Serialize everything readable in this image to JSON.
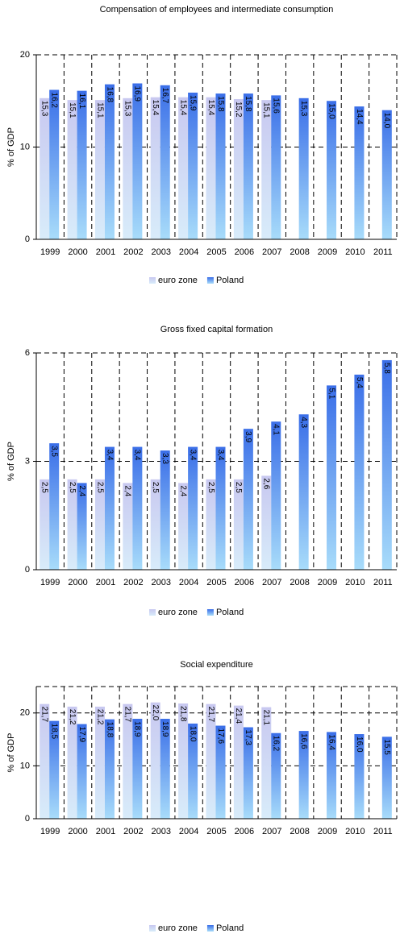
{
  "chart_data": [
    {
      "type": "bar",
      "title": "Compensation of employees and intermediate consumption",
      "y_label": "% of GDP",
      "categories": [
        "1999",
        "2000",
        "2001",
        "2002",
        "2003",
        "2004",
        "2005",
        "2006",
        "2007",
        "2008",
        "2009",
        "2010",
        "2011"
      ],
      "ylim": [
        0,
        20
      ],
      "yticks": [
        0,
        10,
        20
      ],
      "grid": true,
      "series": [
        {
          "name": "euro zone",
          "color": "#c8c8f0",
          "values": [
            15.3,
            15.1,
            15.1,
            15.3,
            15.4,
            15.4,
            15.4,
            15.2,
            15.1,
            null,
            null,
            null,
            null
          ],
          "value_labels": [
            "15,3",
            "15,1",
            "15,1",
            "15,3",
            "15,4",
            "15,4",
            "15,4",
            "15,2",
            "15,1",
            null,
            null,
            null,
            null
          ]
        },
        {
          "name": "Poland",
          "color": "#3a6ee8",
          "values": [
            16.2,
            16.1,
            16.8,
            16.9,
            16.7,
            15.9,
            15.8,
            15.8,
            15.6,
            15.3,
            15.0,
            14.4,
            14.0
          ],
          "value_labels": [
            "16,2",
            "16,1",
            "16,8",
            "16,9",
            "16,7",
            "15,9",
            "15,8",
            "15,8",
            "15,6",
            "15,3",
            "15,0",
            "14,4",
            "14,0"
          ]
        }
      ]
    },
    {
      "type": "bar",
      "title": "Gross fixed capital formation",
      "y_label": "% of GDP",
      "categories": [
        "1999",
        "2000",
        "2001",
        "2002",
        "2003",
        "2004",
        "2005",
        "2006",
        "2007",
        "2008",
        "2009",
        "2010",
        "2011"
      ],
      "ylim": [
        0,
        6
      ],
      "yticks": [
        0,
        3,
        6
      ],
      "grid": true,
      "series": [
        {
          "name": "euro zone",
          "color": "#c8c8f0",
          "values": [
            2.5,
            2.5,
            2.5,
            2.4,
            2.5,
            2.4,
            2.5,
            2.5,
            2.6,
            null,
            null,
            null,
            null
          ],
          "value_labels": [
            "2,5",
            "2,5",
            "2,5",
            "2,4",
            "2,5",
            "2,4",
            "2,5",
            "2,5",
            "2,6",
            null,
            null,
            null,
            null
          ]
        },
        {
          "name": "Poland",
          "color": "#3a6ee8",
          "values": [
            3.5,
            2.4,
            3.4,
            3.4,
            3.3,
            3.4,
            3.4,
            3.9,
            4.1,
            4.3,
            5.1,
            5.4,
            5.8
          ],
          "value_labels": [
            "3,5",
            "2,4",
            "3,4",
            "3,4",
            "3,3",
            "3,4",
            "3,4",
            "3,9",
            "4,1",
            "4,3",
            "5,1",
            "5,4",
            "5,8"
          ]
        }
      ]
    },
    {
      "type": "bar",
      "title": "Social expenditure",
      "y_label": "% of GDP",
      "categories": [
        "1999",
        "2000",
        "2001",
        "2002",
        "2003",
        "2004",
        "2005",
        "2006",
        "2007",
        "2008",
        "2009",
        "2010",
        "2011"
      ],
      "ylim": [
        0,
        25
      ],
      "yticks": [
        0,
        10,
        20
      ],
      "grid": true,
      "series": [
        {
          "name": "euro zone",
          "color": "#c8c8f0",
          "values": [
            21.7,
            21.2,
            21.2,
            21.7,
            22.0,
            21.8,
            21.7,
            21.4,
            21.1,
            null,
            null,
            null,
            null
          ],
          "value_labels": [
            "21,7",
            "21,2",
            "21,2",
            "21,7",
            "22,0",
            "21,8",
            "21,7",
            "21,4",
            "21,1",
            null,
            null,
            null,
            null
          ]
        },
        {
          "name": "Poland",
          "color": "#3a6ee8",
          "values": [
            18.5,
            17.9,
            18.8,
            18.9,
            18.9,
            18.0,
            17.6,
            17.3,
            16.2,
            16.6,
            16.4,
            16.0,
            15.5
          ],
          "value_labels": [
            "18,5",
            "17,9",
            "18,8",
            "18,9",
            "18,9",
            "18,0",
            "17,6",
            "17,3",
            "16,2",
            "16,6",
            "16,4",
            "16,0",
            "15,5"
          ]
        }
      ]
    }
  ]
}
